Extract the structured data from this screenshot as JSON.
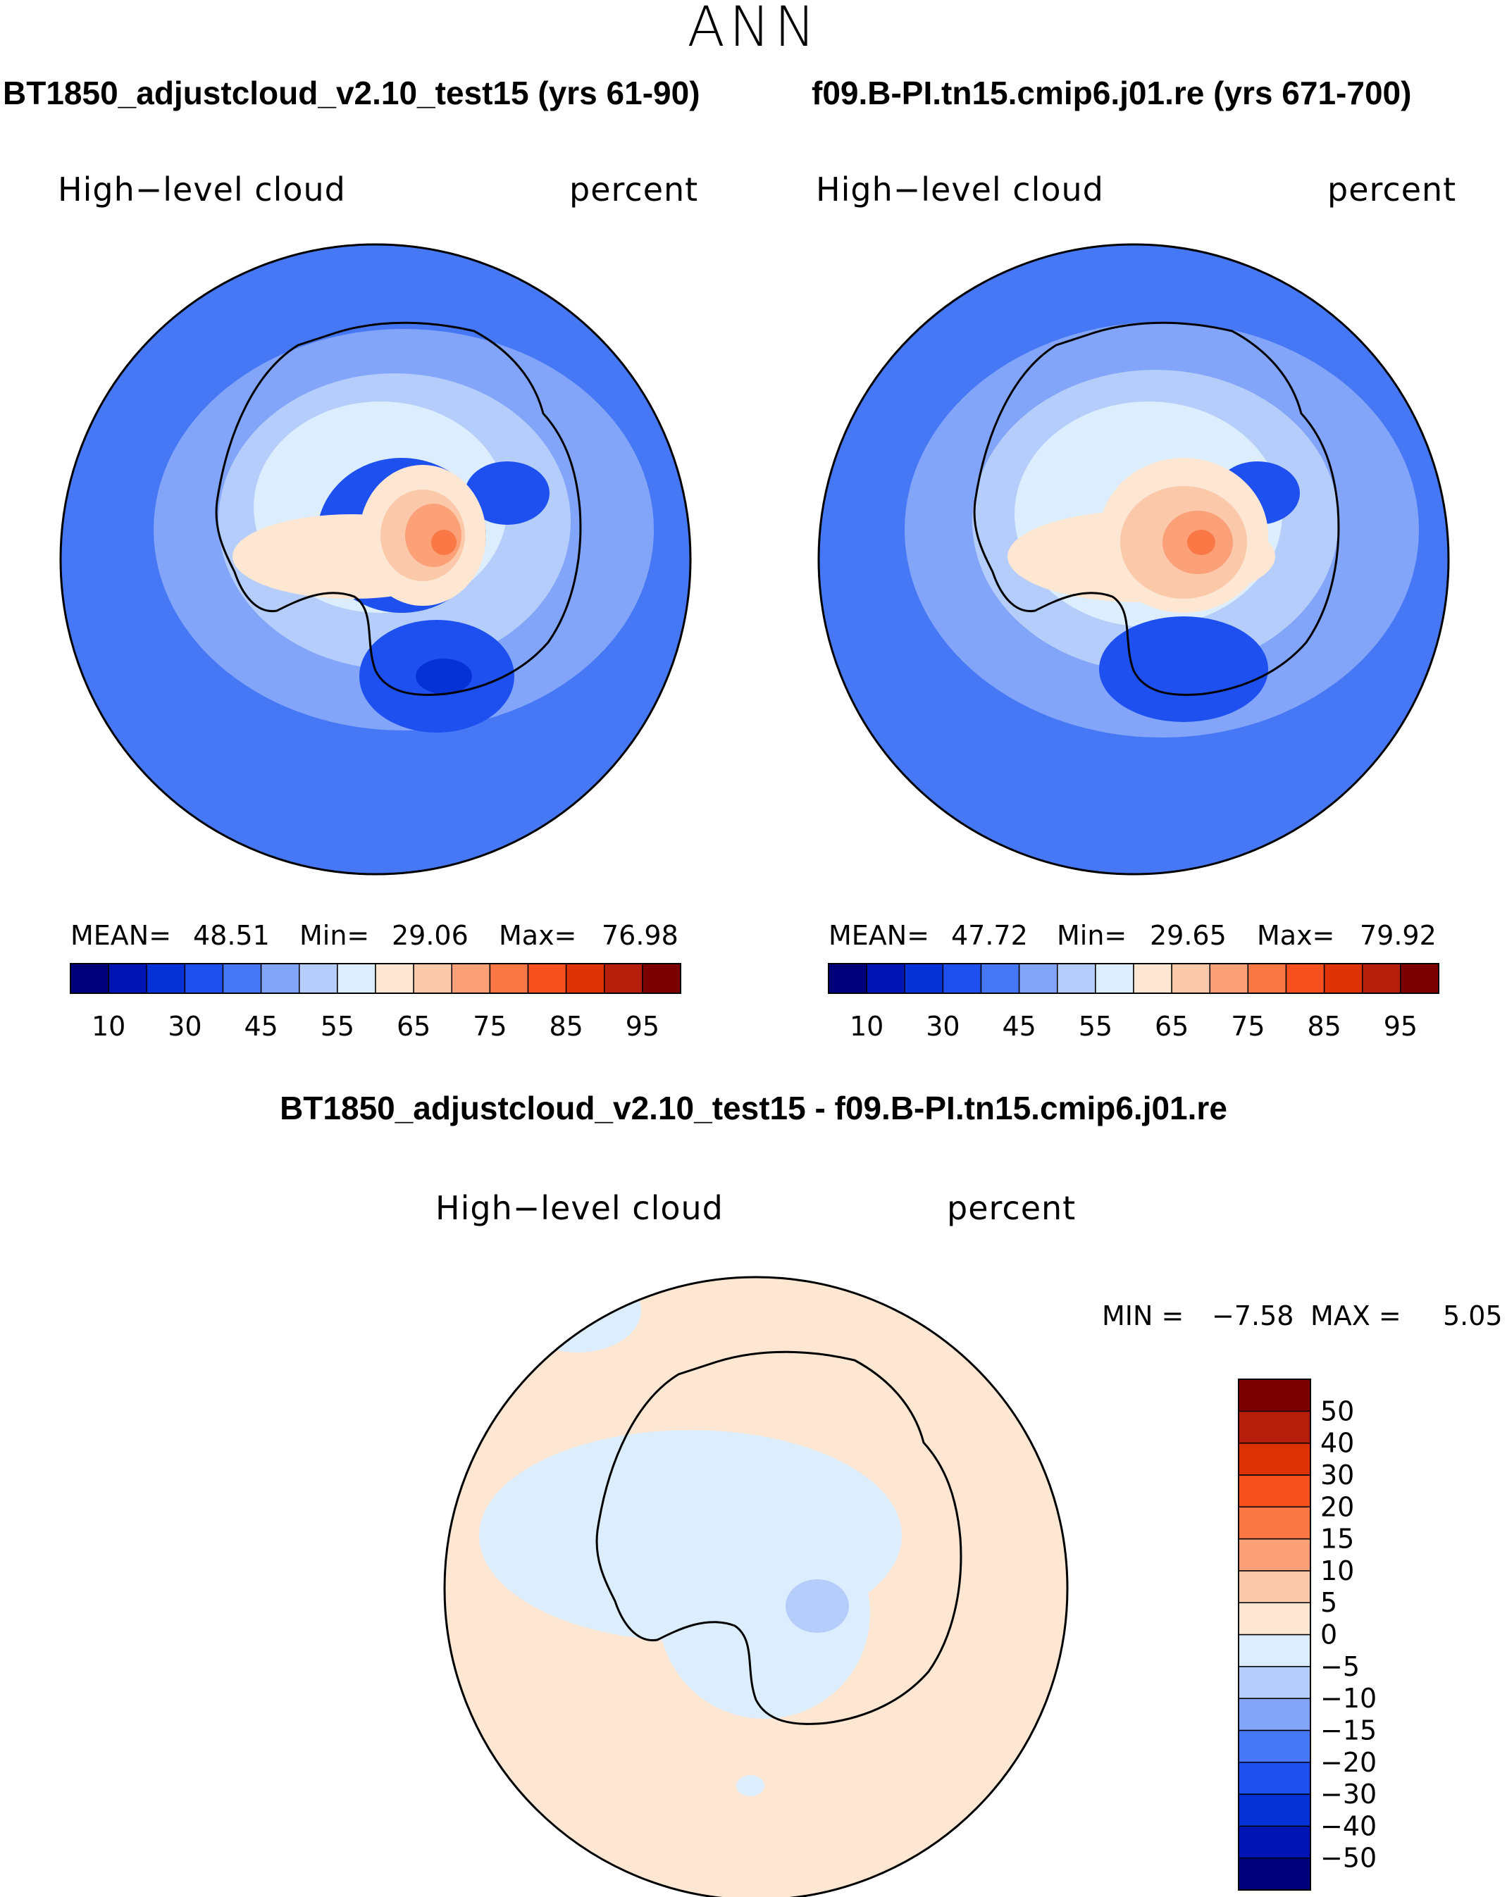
{
  "season": "ANN",
  "panels": [
    {
      "case_title": "BT1850_adjustcloud_v2.10_test15 (yrs 61-90)",
      "variable": "High−level cloud",
      "units": "percent",
      "stats": {
        "mean_label": "MEAN=",
        "mean": "48.51",
        "min_label": "Min=",
        "min": "29.06",
        "max_label": "Max=",
        "max": "76.98"
      }
    },
    {
      "case_title": "f09.B-PI.tn15.cmip6.j01.re (yrs 671-700)",
      "variable": "High−level cloud",
      "units": "percent",
      "stats": {
        "mean_label": "MEAN=",
        "mean": "47.72",
        "min_label": "Min=",
        "min": "29.65",
        "max_label": "Max=",
        "max": "79.92"
      }
    }
  ],
  "diff_panel": {
    "title": "BT1850_adjustcloud_v2.10_test15 - f09.B-PI.tn15.cmip6.j01.re",
    "variable": "High−level cloud",
    "units": "percent",
    "stats": {
      "min_label": "MIN =",
      "min": "−7.58",
      "max_label": "MAX =",
      "max": "5.05"
    }
  },
  "colorbar_abs": {
    "colors": [
      "#00007a",
      "#0014b4",
      "#0532d7",
      "#1e50f0",
      "#4678f5",
      "#82a5fa",
      "#b4cdfa",
      "#dceefd",
      "#fde6d2",
      "#fcc8aa",
      "#fca078",
      "#fa7846",
      "#f5501e",
      "#dc3205",
      "#b41e0a",
      "#7d0000"
    ],
    "tick_labels": [
      "10",
      "30",
      "45",
      "55",
      "65",
      "75",
      "85",
      "95"
    ]
  },
  "colorbar_diff": {
    "colors": [
      "#00007a",
      "#0014b4",
      "#0532d7",
      "#1e50f0",
      "#4678f5",
      "#82a5fa",
      "#b4cdfa",
      "#dceefd",
      "#fde6d2",
      "#fcc8aa",
      "#fca078",
      "#fa7846",
      "#f5501e",
      "#dc3205",
      "#b41e0a",
      "#7d0000"
    ],
    "tick_labels": [
      "−50",
      "−40",
      "−30",
      "−20",
      "−15",
      "−10",
      "−5",
      "0",
      "5",
      "10",
      "15",
      "20",
      "30",
      "40",
      "50"
    ]
  }
}
